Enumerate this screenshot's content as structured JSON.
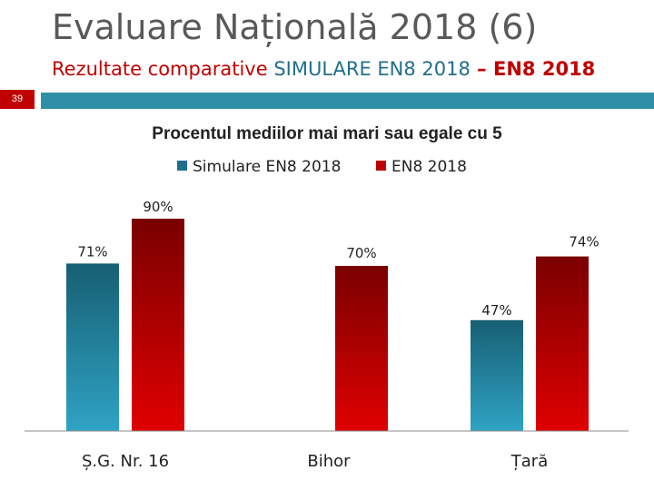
{
  "slide": {
    "title": "Evaluare Națională 2018 (6)",
    "subtitle_prefix": "Rezultate comparative ",
    "subtitle_sim": "SIMULARE EN8 2018",
    "subtitle_sep": " – ",
    "subtitle_en": "EN8 2018",
    "page_number": "39"
  },
  "colors": {
    "accent": "#c00000",
    "teal": "#1f6f8b",
    "series_sim": "#1f6f8b",
    "series_en": "#c00000"
  },
  "chart_data": {
    "type": "bar",
    "title": "Procentul mediilor mai mari sau egale cu 5",
    "categories": [
      "Ș.G. Nr. 16",
      "Bihor",
      "Țară"
    ],
    "series": [
      {
        "name": "Simulare EN8 2018",
        "values": [
          71,
          null,
          47
        ],
        "labels": [
          "71%",
          "",
          "47%"
        ]
      },
      {
        "name": "EN8 2018",
        "values": [
          90,
          70,
          74
        ],
        "labels": [
          "90%",
          "70%",
          "74%"
        ]
      }
    ],
    "ylim": [
      0,
      100
    ],
    "grid": false,
    "legend": "top"
  }
}
